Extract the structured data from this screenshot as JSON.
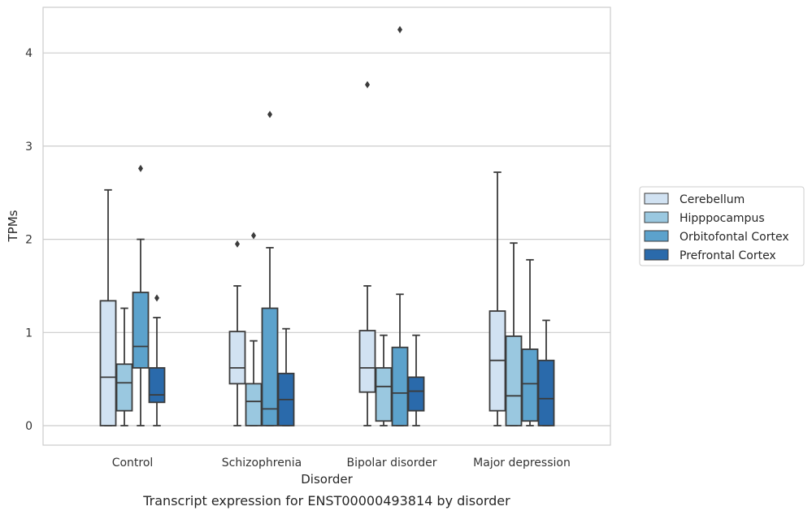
{
  "chart_data": {
    "type": "boxplot",
    "title": "",
    "caption": "Transcript expression for ENST00000493814 by disorder",
    "xlabel": "Disorder",
    "ylabel": "TPMs",
    "ylim": [
      -0.2,
      4.48
    ],
    "yticks": [
      0,
      1,
      2,
      3,
      4
    ],
    "grid": "horizontal",
    "legend_position": "outside-right",
    "categories": [
      "Control",
      "Schizophrenia",
      "Bipolar disorder",
      "Major depression"
    ],
    "series": [
      {
        "name": "Cerebellum",
        "color": "#d1e2f2",
        "boxes": [
          {
            "whisker_low": 0,
            "q1": 0,
            "median": 0.52,
            "q3": 1.34,
            "whisker_high": 2.53,
            "outliers": []
          },
          {
            "whisker_low": 0,
            "q1": 0.45,
            "median": 0.62,
            "q3": 1.01,
            "whisker_high": 1.5,
            "outliers": [
              1.95
            ]
          },
          {
            "whisker_low": 0,
            "q1": 0.36,
            "median": 0.62,
            "q3": 1.02,
            "whisker_high": 1.5,
            "outliers": [
              3.66
            ]
          },
          {
            "whisker_low": 0,
            "q1": 0.16,
            "median": 0.7,
            "q3": 1.23,
            "whisker_high": 2.72,
            "outliers": []
          }
        ]
      },
      {
        "name": "Hipppocampus",
        "color": "#9ac8e0",
        "boxes": [
          {
            "whisker_low": 0,
            "q1": 0.16,
            "median": 0.46,
            "q3": 0.66,
            "whisker_high": 1.26,
            "outliers": []
          },
          {
            "whisker_low": 0,
            "q1": 0,
            "median": 0.26,
            "q3": 0.45,
            "whisker_high": 0.91,
            "outliers": [
              2.04
            ]
          },
          {
            "whisker_low": 0,
            "q1": 0.05,
            "median": 0.42,
            "q3": 0.62,
            "whisker_high": 0.97,
            "outliers": []
          },
          {
            "whisker_low": 0,
            "q1": 0,
            "median": 0.32,
            "q3": 0.96,
            "whisker_high": 1.96,
            "outliers": []
          }
        ]
      },
      {
        "name": "Orbitofontal Cortex",
        "color": "#5ca2cc",
        "boxes": [
          {
            "whisker_low": 0,
            "q1": 0.62,
            "median": 0.85,
            "q3": 1.43,
            "whisker_high": 2.0,
            "outliers": [
              2.76
            ]
          },
          {
            "whisker_low": 0,
            "q1": 0,
            "median": 0.18,
            "q3": 1.26,
            "whisker_high": 1.91,
            "outliers": [
              3.34
            ]
          },
          {
            "whisker_low": 0,
            "q1": 0,
            "median": 0.35,
            "q3": 0.84,
            "whisker_high": 1.41,
            "outliers": [
              4.25
            ]
          },
          {
            "whisker_low": 0,
            "q1": 0.05,
            "median": 0.45,
            "q3": 0.82,
            "whisker_high": 1.78,
            "outliers": []
          }
        ]
      },
      {
        "name": "Prefrontal Cortex",
        "color": "#2a6aab",
        "boxes": [
          {
            "whisker_low": 0,
            "q1": 0.25,
            "median": 0.33,
            "q3": 0.62,
            "whisker_high": 1.16,
            "outliers": [
              1.37
            ]
          },
          {
            "whisker_low": 0,
            "q1": 0,
            "median": 0.28,
            "q3": 0.56,
            "whisker_high": 1.04,
            "outliers": []
          },
          {
            "whisker_low": 0,
            "q1": 0.16,
            "median": 0.37,
            "q3": 0.52,
            "whisker_high": 0.97,
            "outliers": []
          },
          {
            "whisker_low": 0,
            "q1": 0,
            "median": 0.29,
            "q3": 0.7,
            "whisker_high": 1.13,
            "outliers": []
          }
        ]
      }
    ]
  }
}
